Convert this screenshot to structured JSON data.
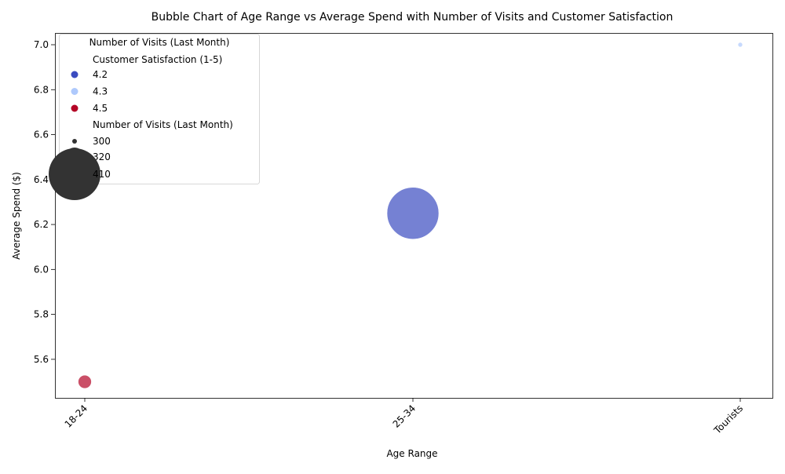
{
  "chart_data": {
    "type": "scatter",
    "title": "Bubble Chart of Age Range vs Average Spend with Number of Visits and Customer Satisfaction",
    "xlabel": "Age Range",
    "ylabel": "Average Spend ($)",
    "categories": [
      "18-24",
      "25-34",
      "Tourists"
    ],
    "ylim": [
      5.5,
      7.0
    ],
    "yticks": [
      "5.6",
      "5.8",
      "6.0",
      "6.2",
      "6.4",
      "6.6",
      "6.8",
      "7.0"
    ],
    "grid": false,
    "points": [
      {
        "x": "18-24",
        "y": 5.5,
        "visits": 320,
        "satisfaction": 4.5,
        "color": "#b40426"
      },
      {
        "x": "25-34",
        "y": 6.25,
        "visits": 410,
        "satisfaction": 4.2,
        "color": "#3b4cc0"
      },
      {
        "x": "Tourists",
        "y": 7.0,
        "visits": 300,
        "satisfaction": 4.3,
        "color": "#aec9fc"
      }
    ],
    "legend": {
      "title": "Number of Visits (Last Month)",
      "placement": "top-left",
      "hue_title": "Customer Satisfaction (1-5)",
      "hue_entries": [
        {
          "label": "4.2",
          "color": "#3b4cc0"
        },
        {
          "label": "4.3",
          "color": "#aec9fc"
        },
        {
          "label": "4.5",
          "color": "#b40426"
        }
      ],
      "size_title": "Number of Visits (Last Month)",
      "size_entries": [
        {
          "label": "300",
          "value": 300
        },
        {
          "label": "320",
          "value": 320
        },
        {
          "label": "410",
          "value": 410
        }
      ]
    }
  }
}
